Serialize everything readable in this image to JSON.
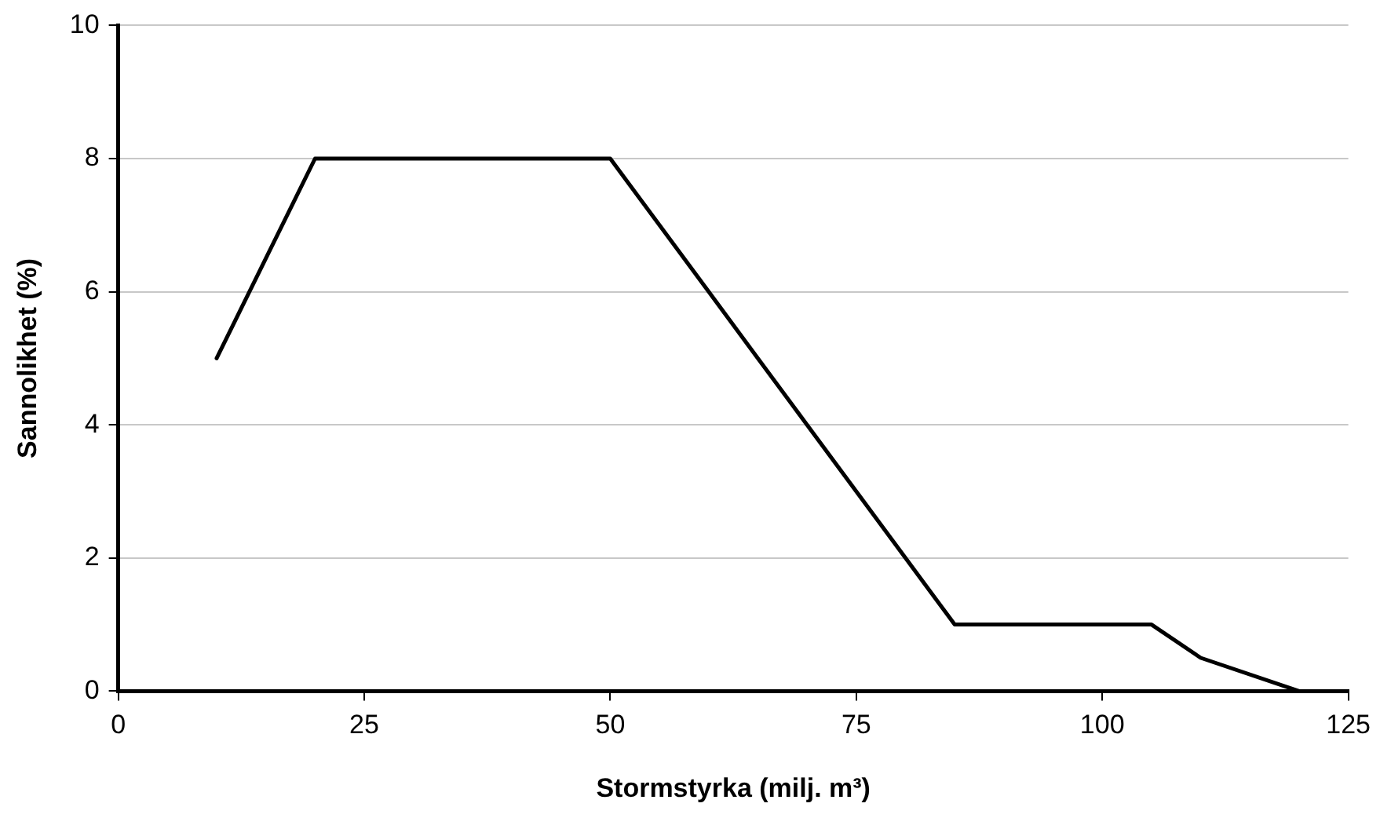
{
  "chart_data": {
    "type": "line",
    "xlabel": "Stormstyrka (milj. m³)",
    "ylabel": "Sannolikhet (%)",
    "x": [
      10,
      15,
      20,
      25,
      30,
      35,
      40,
      45,
      50,
      55,
      60,
      65,
      70,
      75,
      80,
      85,
      90,
      95,
      100,
      105,
      110,
      120
    ],
    "series": [
      {
        "color": "#000000",
        "values": [
          5,
          6.5,
          8,
          8,
          8,
          8,
          8,
          8,
          8,
          7,
          6,
          5,
          4,
          3,
          2,
          1,
          1,
          1,
          1,
          1,
          0.5,
          0
        ]
      }
    ],
    "xlim": [
      0,
      125
    ],
    "xticks": [
      0,
      25,
      50,
      75,
      100,
      125
    ],
    "ylim": [
      0,
      10
    ],
    "yticks": [
      0,
      2,
      4,
      6,
      8,
      10
    ],
    "grid": "y",
    "legend": false,
    "marker": "none",
    "line_style": "solid"
  }
}
